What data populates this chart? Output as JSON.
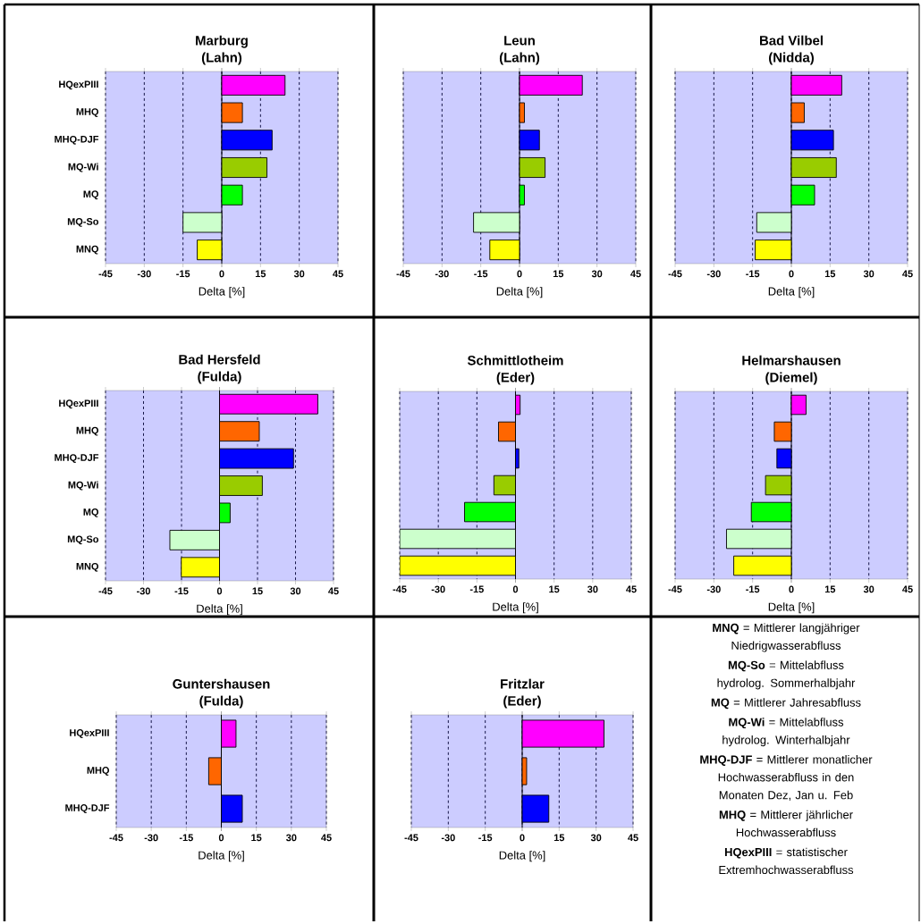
{
  "chart_data": [
    {
      "type": "bar",
      "orientation": "horizontal",
      "title": "Marburg",
      "subtitle": "(Lahn)",
      "xlabel": "Delta [%]",
      "grid": "x",
      "categories": [
        "HQexPIII",
        "MHQ",
        "MHQ-DJF",
        "MQ-Wi",
        "MQ",
        "MQ-So",
        "MNQ"
      ],
      "values": [
        24.5,
        8,
        19.5,
        17.5,
        8,
        -15,
        -9.5
      ],
      "colors": [
        "#ff00ff",
        "#ff6600",
        "#0000ff",
        "#99cc00",
        "#00ff00",
        "#ccffcc",
        "#ffff00"
      ],
      "xlim": [
        -45,
        45
      ],
      "xticks": [
        -45,
        -30,
        -15,
        0,
        15,
        30,
        45
      ]
    },
    {
      "type": "bar",
      "orientation": "horizontal",
      "title": "Leun",
      "subtitle": "(Lahn)",
      "xlabel": "Delta [%]",
      "grid": "x",
      "categories": [
        null,
        null,
        null,
        null,
        null,
        null,
        null
      ],
      "values": [
        24.3,
        1.9,
        7.7,
        9.9,
        1.9,
        -17.8,
        -11.5
      ],
      "colors": [
        "#ff00ff",
        "#ff6600",
        "#0000ff",
        "#99cc00",
        "#00ff00",
        "#ccffcc",
        "#ffff00"
      ],
      "xlim": [
        -45,
        45
      ],
      "xticks": [
        -45,
        -30,
        -15,
        0,
        15,
        30,
        45
      ]
    },
    {
      "type": "bar",
      "orientation": "horizontal",
      "title": "Bad Vilbel",
      "subtitle": "(Nidda)",
      "xlabel": "Delta [%]",
      "grid": "x",
      "categories": [
        null,
        null,
        null,
        null,
        null,
        null,
        null
      ],
      "values": [
        19.5,
        5,
        16.3,
        17.4,
        9,
        -13.4,
        -14
      ],
      "colors": [
        "#ff00ff",
        "#ff6600",
        "#0000ff",
        "#99cc00",
        "#00ff00",
        "#ccffcc",
        "#ffff00"
      ],
      "xlim": [
        -45,
        45
      ],
      "xticks": [
        -45,
        -30,
        -15,
        0,
        15,
        30,
        45
      ]
    },
    {
      "type": "bar",
      "orientation": "horizontal",
      "title": "Bad Hersfeld",
      "subtitle": "(Fulda)",
      "xlabel": "Delta [%]",
      "grid": "x",
      "categories": [
        "HQexPIII",
        "MHQ",
        "MHQ-DJF",
        "MQ-Wi",
        "MQ",
        "MQ-So",
        "MNQ"
      ],
      "values": [
        38.8,
        15.7,
        29.2,
        16.9,
        4.2,
        -19.6,
        -15.1
      ],
      "colors": [
        "#ff00ff",
        "#ff6600",
        "#0000ff",
        "#99cc00",
        "#00ff00",
        "#ccffcc",
        "#ffff00"
      ],
      "xlim": [
        -45,
        45
      ],
      "xticks": [
        -45,
        -30,
        -15,
        0,
        15,
        30,
        45
      ]
    },
    {
      "type": "bar",
      "orientation": "horizontal",
      "title": "Schmittlotheim",
      "subtitle": "(Eder)",
      "xlabel": "Delta [%]",
      "grid": "x",
      "categories": [
        null,
        null,
        null,
        null,
        null,
        null,
        null
      ],
      "values": [
        1.8,
        -6.6,
        1.3,
        -8.4,
        -19.8,
        -45,
        -45
      ],
      "colors": [
        "#ff00ff",
        "#ff6600",
        "#0000ff",
        "#99cc00",
        "#00ff00",
        "#ccffcc",
        "#ffff00"
      ],
      "xlim": [
        -45,
        45
      ],
      "xticks": [
        -45,
        -30,
        -15,
        0,
        15,
        30,
        45
      ]
    },
    {
      "type": "bar",
      "orientation": "horizontal",
      "title": "Helmarshausen",
      "subtitle": "(Diemel)",
      "xlabel": "Delta [%]",
      "grid": "x",
      "categories": [
        null,
        null,
        null,
        null,
        null,
        null,
        null
      ],
      "values": [
        5.7,
        -6.6,
        -5.6,
        -10,
        -15.5,
        -25.1,
        -22.3
      ],
      "colors": [
        "#ff00ff",
        "#ff6600",
        "#0000ff",
        "#99cc00",
        "#00ff00",
        "#ccffcc",
        "#ffff00"
      ],
      "xlim": [
        -45,
        45
      ],
      "xticks": [
        -45,
        -30,
        -15,
        0,
        15,
        30,
        45
      ]
    },
    {
      "type": "bar",
      "orientation": "horizontal",
      "title": "Guntershausen",
      "subtitle": "(Fulda)",
      "xlabel": "Delta [%]",
      "grid": "x",
      "categories": [
        "HQexPIII",
        "MHQ",
        "MHQ-DJF"
      ],
      "values": [
        6.3,
        -5.4,
        9
      ],
      "colors": [
        "#ff00ff",
        "#ff6600",
        "#0000ff"
      ],
      "xlim": [
        -45,
        45
      ],
      "xticks": [
        -45,
        -30,
        -15,
        0,
        15,
        30,
        45
      ]
    },
    {
      "type": "bar",
      "orientation": "horizontal",
      "title": "Fritzlar",
      "subtitle": "(Eder)",
      "xlabel": "Delta [%]",
      "grid": "x",
      "categories": [
        null,
        null,
        null
      ],
      "values": [
        33.2,
        1.8,
        10.8
      ],
      "colors": [
        "#ff00ff",
        "#ff6600",
        "#0000ff"
      ],
      "xlim": [
        -45,
        45
      ],
      "xticks": [
        -45,
        -30,
        -15,
        0,
        15,
        30,
        45
      ]
    },
    {
      "type": "other",
      "annotations": [
        "**MNQ** = Mittlerer langjähriger Niedrigwasserabfluss",
        "**MQ-So** = Mittelabfluss hydrolog. Sommerhalbjahr",
        "**MQ** = Mittlerer Jahresabfluss",
        "**MQ-Wi** = Mittelabfluss hydrolog. Winterhalbjahr",
        "**MHQ-DJF** = Mittlerer monatlicher Hochwasserabfluss in den Monaten Dez, Jan u. Feb",
        "**MHQ** = Mittlerer jährlicher Hochwasserabfluss",
        "**HQexPIII** = statistischer Extremhochwasserabfluss"
      ]
    }
  ]
}
